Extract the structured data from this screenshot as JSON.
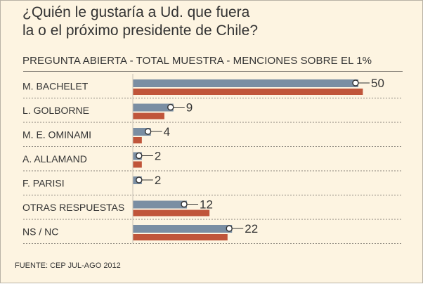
{
  "title": "¿Quién le gustaría a Ud. que fuera\nla o el próximo presidente de Chile?",
  "subtitle": "PREGUNTA ABIERTA - TOTAL MUESTRA - MENCIONES SOBRE EL 1%",
  "source": "FUENTE: CEP JUL-AGO 2012",
  "colors": {
    "background": "#fdf4e1",
    "series_blue": "#7a8ea3",
    "series_red": "#c0553a"
  },
  "chart_data": {
    "type": "bar",
    "orientation": "horizontal",
    "categories": [
      "M. BACHELET",
      "L. GOLBORNE",
      "M. E. OMINAMI",
      "A. ALLAMAND",
      "F. PARISI",
      "OTRAS RESPUESTAS",
      "NS / NC"
    ],
    "series": [
      {
        "values": [
          50,
          9,
          4,
          2,
          2,
          12,
          22
        ],
        "color": "#7a8ea3",
        "labeled": true
      },
      {
        "values": [
          51,
          7,
          2,
          2,
          0,
          17,
          21
        ],
        "color": "#c0553a",
        "labeled": false
      }
    ],
    "xlim": [
      0,
      50
    ],
    "grid": false
  }
}
